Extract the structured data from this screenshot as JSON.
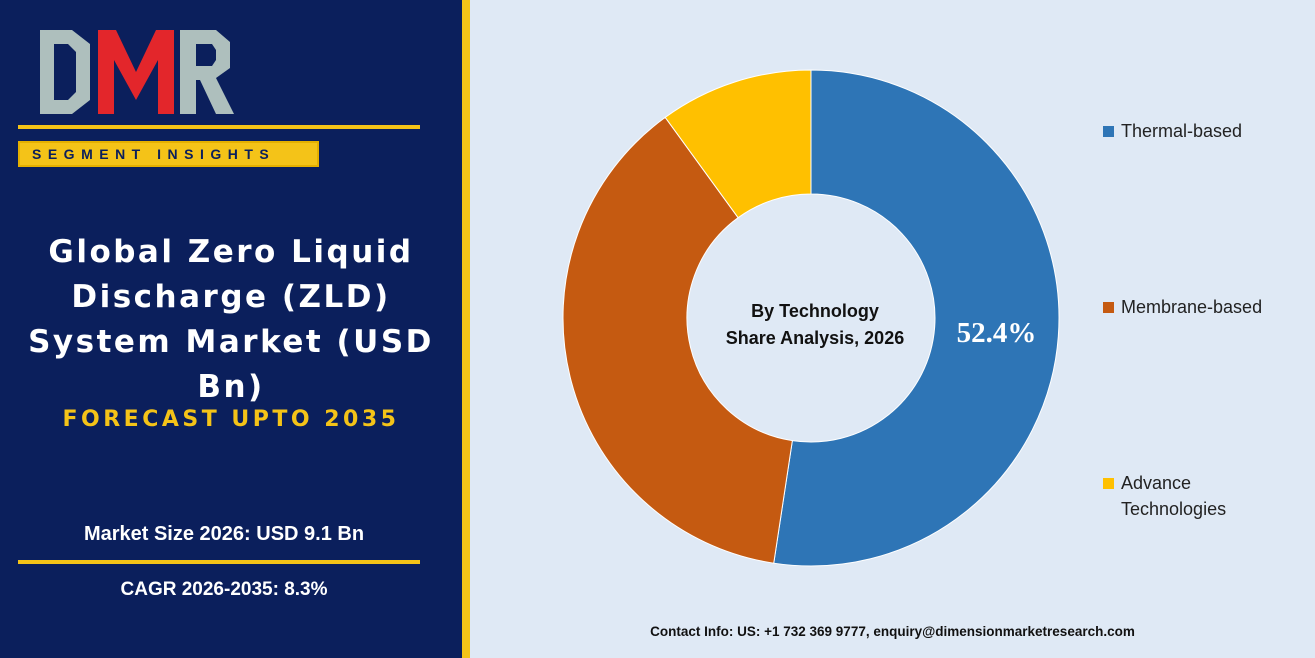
{
  "brand": {
    "logo_text": "DMR",
    "badge": "SEGMENT INSIGHTS",
    "colors": {
      "navy": "#0b1f5c",
      "gold": "#f4c318",
      "red": "#e3262b",
      "grey": "#aebfbd"
    }
  },
  "headline": {
    "title": "Global Zero Liquid Discharge (ZLD) System Market (USD Bn)",
    "subtitle": "FORECAST UPTO 2035"
  },
  "stats": {
    "market_size": "Market Size 2026: USD 9.1 Bn",
    "cagr": "CAGR 2026-2035: 8.3%"
  },
  "chart_data": {
    "type": "pie",
    "variant": "donut",
    "center_label": [
      "By Technology",
      "Share Analysis, 2026"
    ],
    "categories": [
      "Thermal-based",
      "Membrane-based",
      "Advance Technologies"
    ],
    "values": [
      52.4,
      37.6,
      10.0
    ],
    "data_labels": [
      "52.4%",
      "",
      ""
    ],
    "colors": [
      "#2e75b6",
      "#c55a11",
      "#ffc000"
    ],
    "legend_position": "right"
  },
  "footer": {
    "contact": "Contact Info: US: +1 732 369 9777, enquiry@dimensionmarketresearch.com"
  }
}
